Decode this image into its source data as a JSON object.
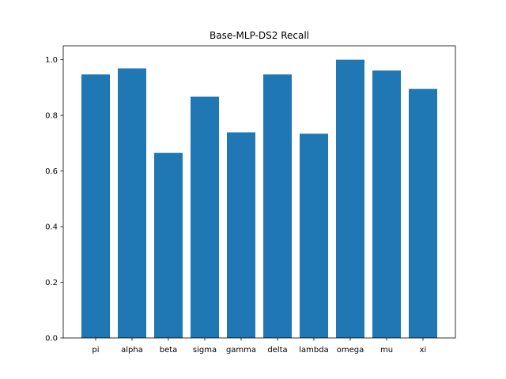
{
  "chart_data": {
    "type": "bar",
    "title": "Base-MLP-DS2 Recall",
    "xlabel": "",
    "ylabel": "",
    "categories": [
      "pi",
      "alpha",
      "beta",
      "sigma",
      "gamma",
      "delta",
      "lambda",
      "omega",
      "mu",
      "xi"
    ],
    "values": [
      0.947,
      0.969,
      0.665,
      0.867,
      0.739,
      0.947,
      0.734,
      1.0,
      0.961,
      0.895
    ],
    "ylim": [
      0,
      1.05
    ],
    "yticks": [
      "0.0",
      "0.2",
      "0.4",
      "0.6",
      "0.8",
      "1.0"
    ],
    "bar_color": "#1f77b4",
    "grid": false,
    "legend": "none"
  }
}
